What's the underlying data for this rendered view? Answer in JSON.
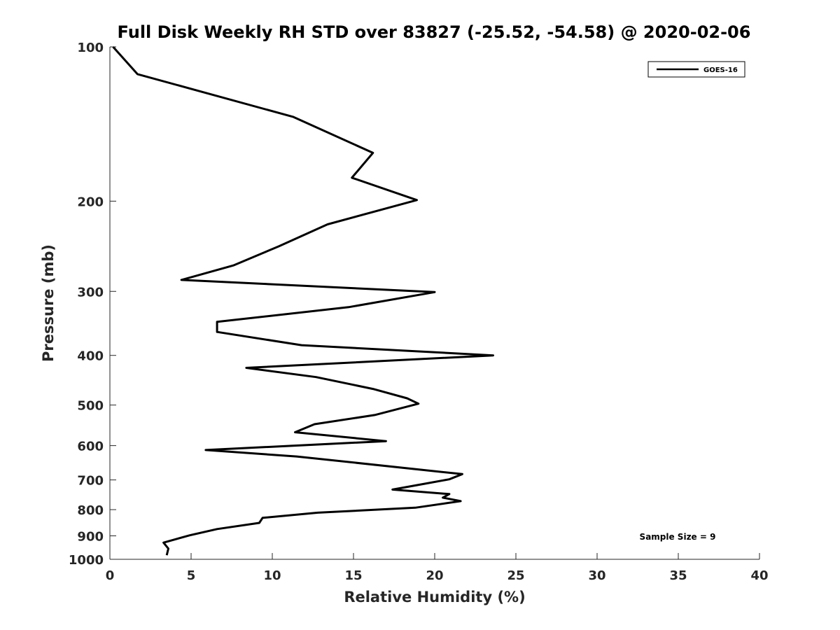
{
  "chart_data": {
    "type": "line",
    "title": "Full Disk Weekly RH STD over 83827 (-25.52, -54.58) @ 2020-02-06",
    "xlabel": "Relative Humidity (%)",
    "ylabel": "Pressure (mb)",
    "xlim": [
      0,
      40
    ],
    "ylim": [
      100,
      1000
    ],
    "y_axis": {
      "reversed": true,
      "scale": "log"
    },
    "x_ticks": [
      0,
      5,
      10,
      15,
      20,
      25,
      30,
      35,
      40
    ],
    "x_tick_labels": [
      "0",
      "5",
      "10",
      "15",
      "20",
      "25",
      "30",
      "35",
      "40"
    ],
    "y_ticks": [
      100,
      200,
      300,
      400,
      500,
      600,
      700,
      800,
      900,
      1000
    ],
    "y_tick_labels": [
      "100",
      "200",
      "300",
      "400",
      "500",
      "600",
      "700",
      "800",
      "900",
      "1000"
    ],
    "grid": false,
    "legend": {
      "position": "top-right",
      "entries": [
        "GOES-16"
      ]
    },
    "annotation": "Sample Size = 9",
    "series": [
      {
        "name": "GOES-16",
        "color": "#000000",
        "x": [
          0.2,
          1.7,
          11.3,
          16.2,
          14.9,
          18.9,
          13.4,
          10.4,
          7.6,
          4.4,
          20.0,
          14.7,
          6.6,
          6.6,
          11.8,
          23.6,
          8.4,
          12.7,
          16.2,
          18.3,
          19.0,
          16.3,
          12.6,
          11.4,
          17.0,
          5.9,
          11.5,
          21.7,
          20.9,
          19.4,
          17.4,
          20.9,
          20.5,
          21.6,
          18.8,
          12.8,
          9.4,
          9.2,
          6.6,
          4.9,
          3.3,
          3.6,
          3.5
        ]
      }
    ],
    "y": [
      100,
      113,
      137,
      161,
      180,
      199,
      222,
      245,
      267,
      285,
      301,
      322,
      344,
      360,
      382,
      400,
      423,
      441,
      465,
      485,
      497,
      523,
      545,
      565,
      588,
      612,
      630,
      682,
      698,
      712,
      731,
      746,
      758,
      770,
      793,
      811,
      830,
      849,
      873,
      898,
      928,
      953,
      982
    ]
  }
}
